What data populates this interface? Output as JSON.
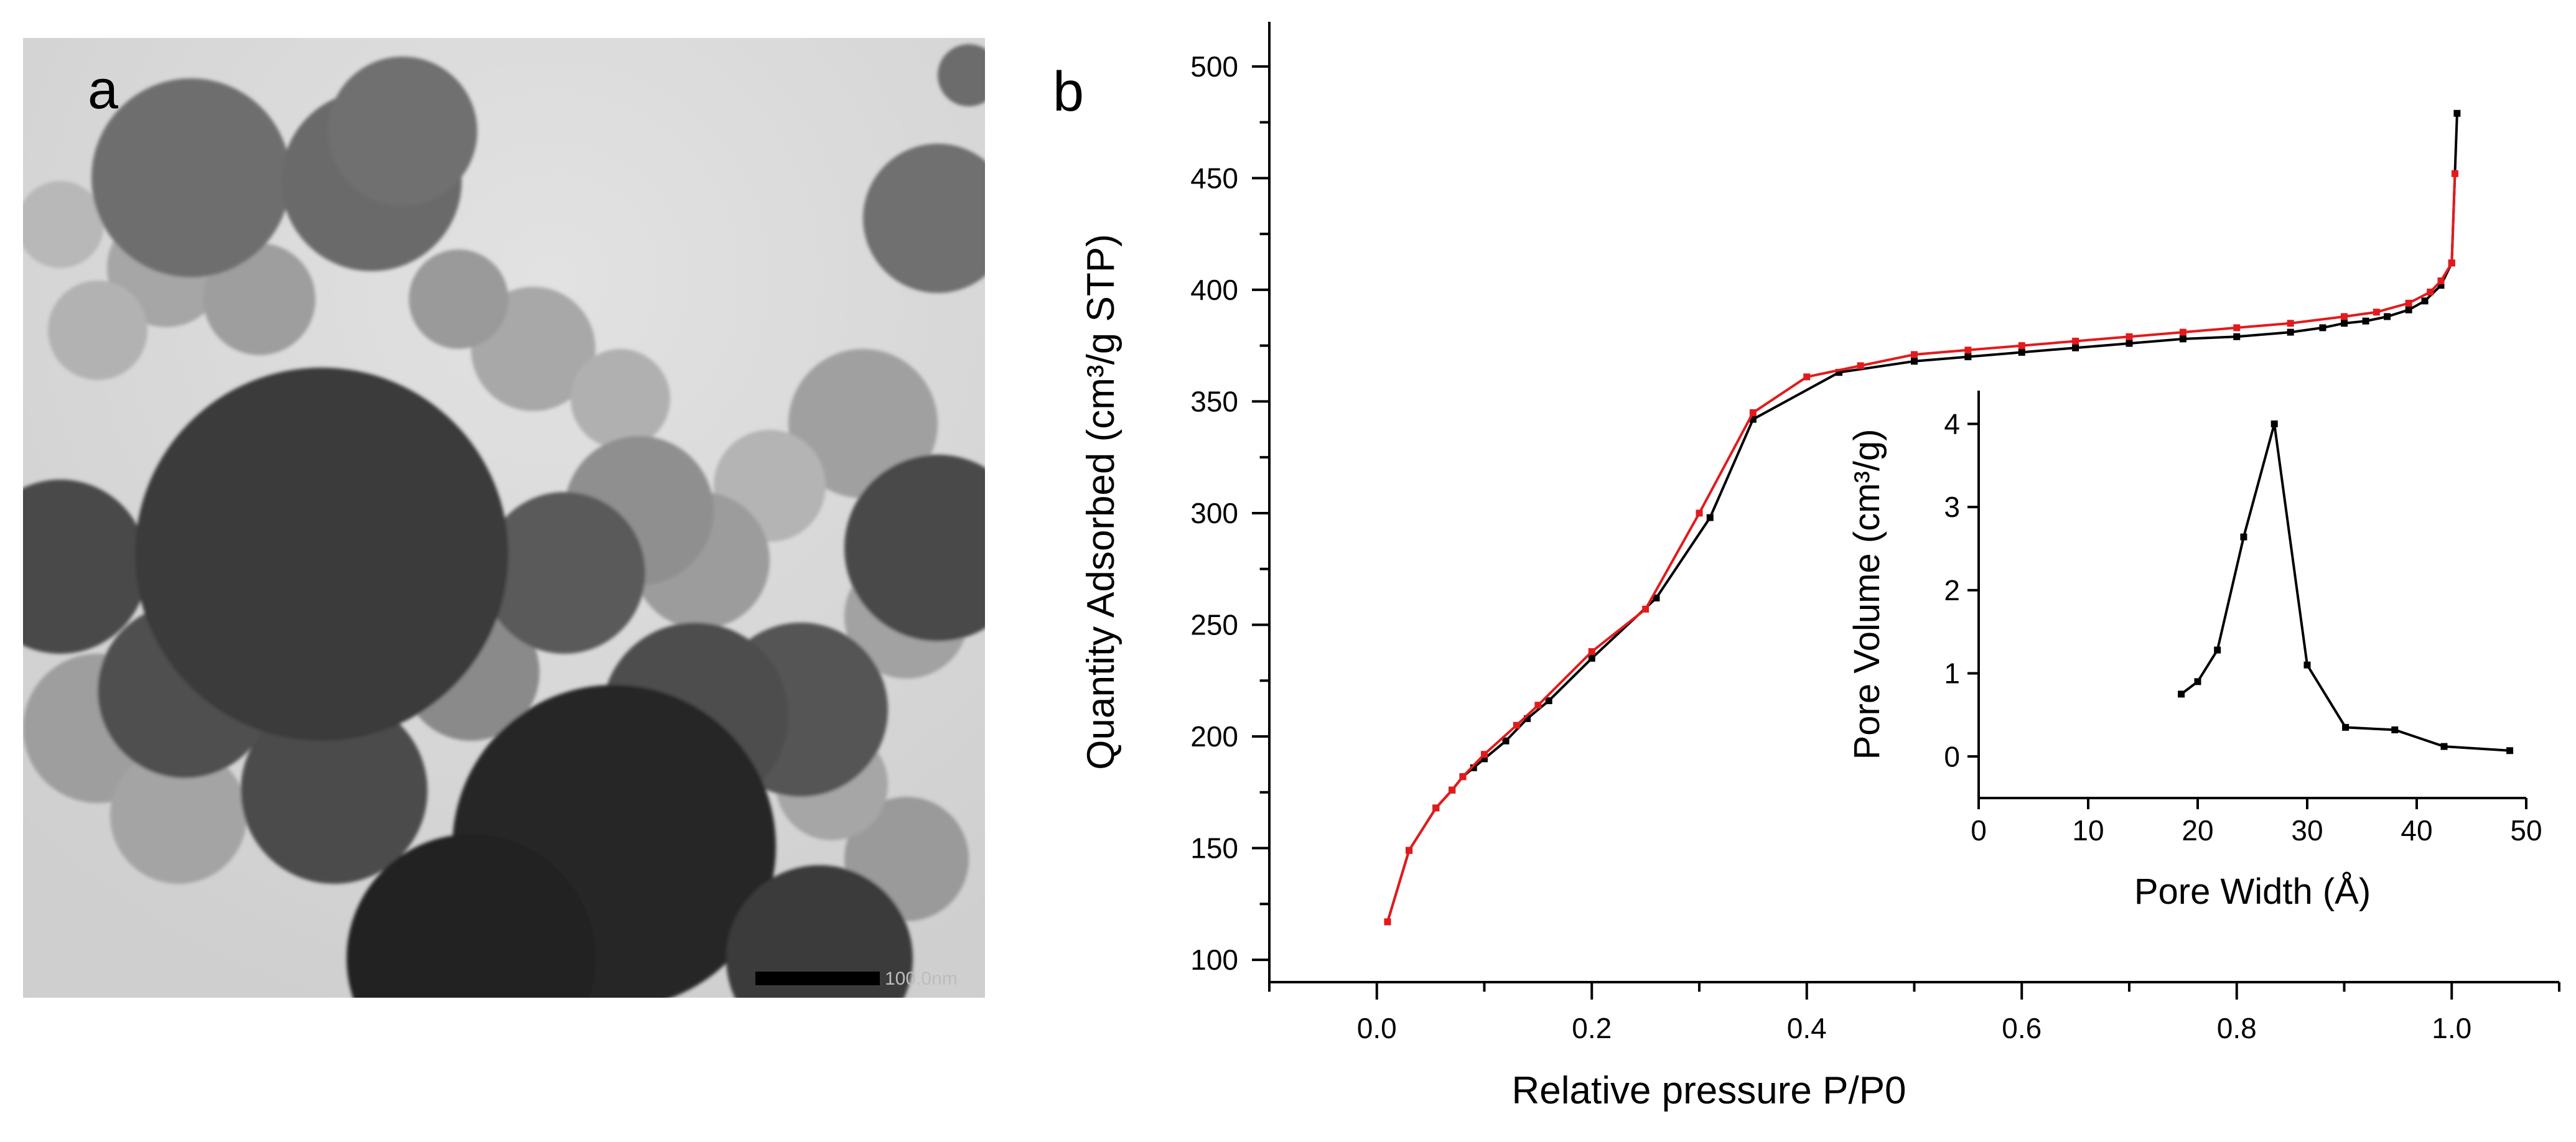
{
  "panel_a": {
    "label": "a",
    "scale_bar_text": "100.0nm"
  },
  "panel_b": {
    "label": "b"
  },
  "chart_data": [
    {
      "type": "line",
      "xlabel": "Relative pressure P/P0",
      "ylabel": "Quantity Adsorbed (cm³/g STP)",
      "xlim": [
        -0.1,
        1.1
      ],
      "ylim": [
        90,
        520
      ],
      "xticks": [
        0.0,
        0.2,
        0.4,
        0.6,
        0.8,
        1.0
      ],
      "xtick_labels": [
        "0.0",
        "0.2",
        "0.4",
        "0.6",
        "0.8",
        "1.0"
      ],
      "yticks": [
        100,
        150,
        200,
        250,
        300,
        350,
        400,
        450,
        500
      ],
      "ytick_labels": [
        "100",
        "150",
        "200",
        "250",
        "300",
        "350",
        "400",
        "450",
        "500"
      ],
      "grid": false,
      "series": [
        {
          "color": "#000000",
          "points": [
            [
              0.01,
              117
            ],
            [
              0.03,
              149
            ],
            [
              0.055,
              168
            ],
            [
              0.07,
              176
            ],
            [
              0.08,
              182
            ],
            [
              0.09,
              186
            ],
            [
              0.1,
              190
            ],
            [
              0.12,
              198
            ],
            [
              0.14,
              208
            ],
            [
              0.16,
              216
            ],
            [
              0.2,
              235
            ],
            [
              0.26,
              262
            ],
            [
              0.31,
              298
            ],
            [
              0.35,
              342
            ],
            [
              0.43,
              363
            ],
            [
              0.5,
              368
            ],
            [
              0.55,
              370
            ],
            [
              0.6,
              372
            ],
            [
              0.65,
              374
            ],
            [
              0.7,
              376
            ],
            [
              0.75,
              378
            ],
            [
              0.8,
              379
            ],
            [
              0.85,
              381
            ],
            [
              0.88,
              383
            ],
            [
              0.9,
              385
            ],
            [
              0.92,
              386
            ],
            [
              0.94,
              388
            ],
            [
              0.96,
              391
            ],
            [
              0.975,
              395
            ],
            [
              0.99,
              402
            ],
            [
              1.0,
              412
            ],
            [
              1.005,
              479
            ]
          ]
        },
        {
          "color": "#e31a1c",
          "points": [
            [
              0.01,
              117
            ],
            [
              0.03,
              149
            ],
            [
              0.055,
              168
            ],
            [
              0.07,
              176
            ],
            [
              0.08,
              182
            ],
            [
              0.1,
              192
            ],
            [
              0.13,
              205
            ],
            [
              0.15,
              214
            ],
            [
              0.2,
              238
            ],
            [
              0.25,
              257
            ],
            [
              0.3,
              300
            ],
            [
              0.35,
              345
            ],
            [
              0.4,
              361
            ],
            [
              0.45,
              366
            ],
            [
              0.5,
              371
            ],
            [
              0.55,
              373
            ],
            [
              0.6,
              375
            ],
            [
              0.65,
              377
            ],
            [
              0.7,
              379
            ],
            [
              0.75,
              381
            ],
            [
              0.8,
              383
            ],
            [
              0.85,
              385
            ],
            [
              0.9,
              388
            ],
            [
              0.93,
              390
            ],
            [
              0.96,
              394
            ],
            [
              0.98,
              399
            ],
            [
              0.99,
              404
            ],
            [
              1.0,
              412
            ],
            [
              1.003,
              452
            ]
          ]
        }
      ]
    },
    {
      "type": "line",
      "xlabel": "Pore Width (Å)",
      "ylabel": "Pore Volume (cm³/g)",
      "xlim": [
        0,
        50
      ],
      "ylim": [
        -0.5,
        4.4
      ],
      "xticks": [
        0,
        10,
        20,
        30,
        40,
        50
      ],
      "xtick_labels": [
        "0",
        "10",
        "20",
        "30",
        "40",
        "50"
      ],
      "yticks": [
        0,
        1,
        2,
        3,
        4
      ],
      "ytick_labels": [
        "0",
        "1",
        "2",
        "3",
        "4"
      ],
      "grid": false,
      "series": [
        {
          "color": "#000000",
          "points": [
            [
              18.5,
              0.75
            ],
            [
              20,
              0.9
            ],
            [
              21.8,
              1.28
            ],
            [
              24.2,
              2.64
            ],
            [
              27,
              4.0
            ],
            [
              30,
              1.1
            ],
            [
              33.5,
              0.35
            ],
            [
              38,
              0.32
            ],
            [
              42.5,
              0.12
            ],
            [
              48.5,
              0.07
            ]
          ]
        }
      ]
    }
  ]
}
